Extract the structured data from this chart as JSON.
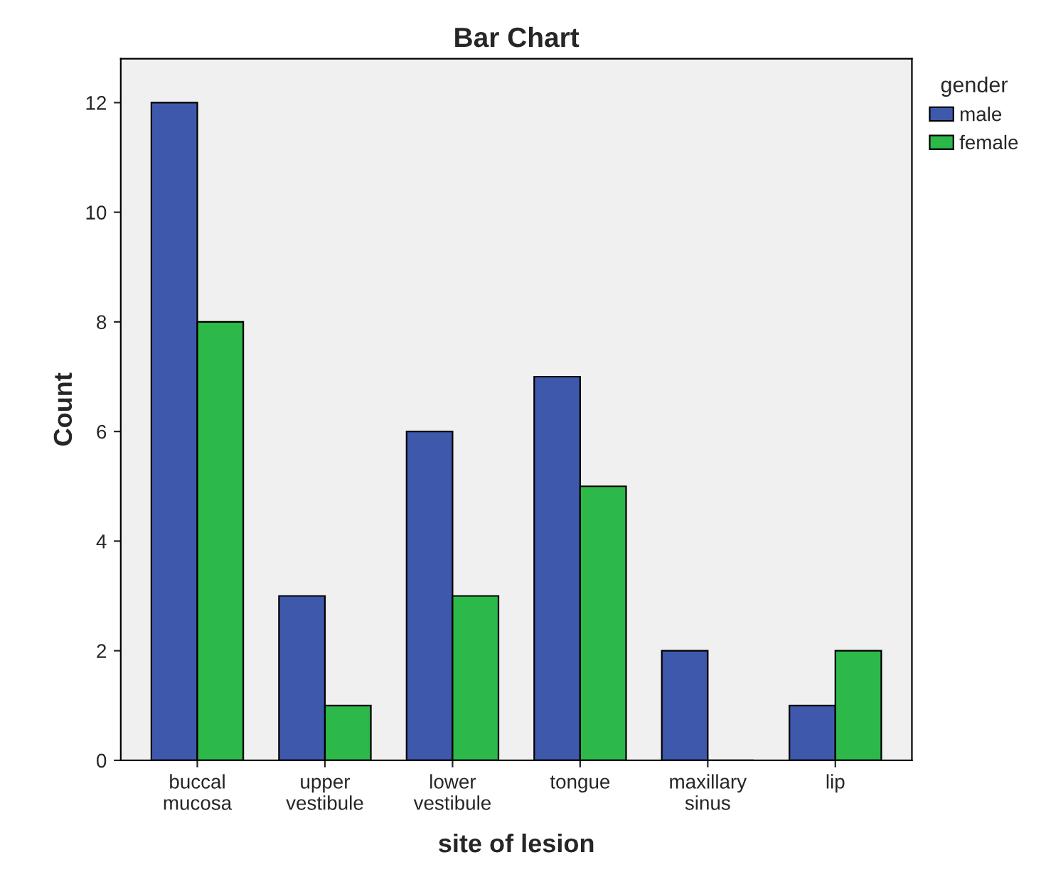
{
  "chart_data": {
    "type": "bar",
    "title": "Bar Chart",
    "xlabel": "site of lesion",
    "ylabel": "Count",
    "legend_title": "gender",
    "categories": [
      "buccal\nmucosa",
      "upper\nvestibule",
      "lower\nvestibule",
      "tongue",
      "maxillary\nsinus",
      "lip"
    ],
    "series": [
      {
        "name": "male",
        "color": "#3e58ac",
        "values": [
          12,
          3,
          6,
          7,
          2,
          1
        ]
      },
      {
        "name": "female",
        "color": "#2db84a",
        "values": [
          8,
          1,
          3,
          5,
          0,
          2
        ]
      }
    ],
    "ylim": [
      0,
      12.8
    ],
    "yticks": [
      0,
      2,
      4,
      6,
      8,
      10,
      12
    ],
    "grid": false,
    "legend": "top right"
  }
}
